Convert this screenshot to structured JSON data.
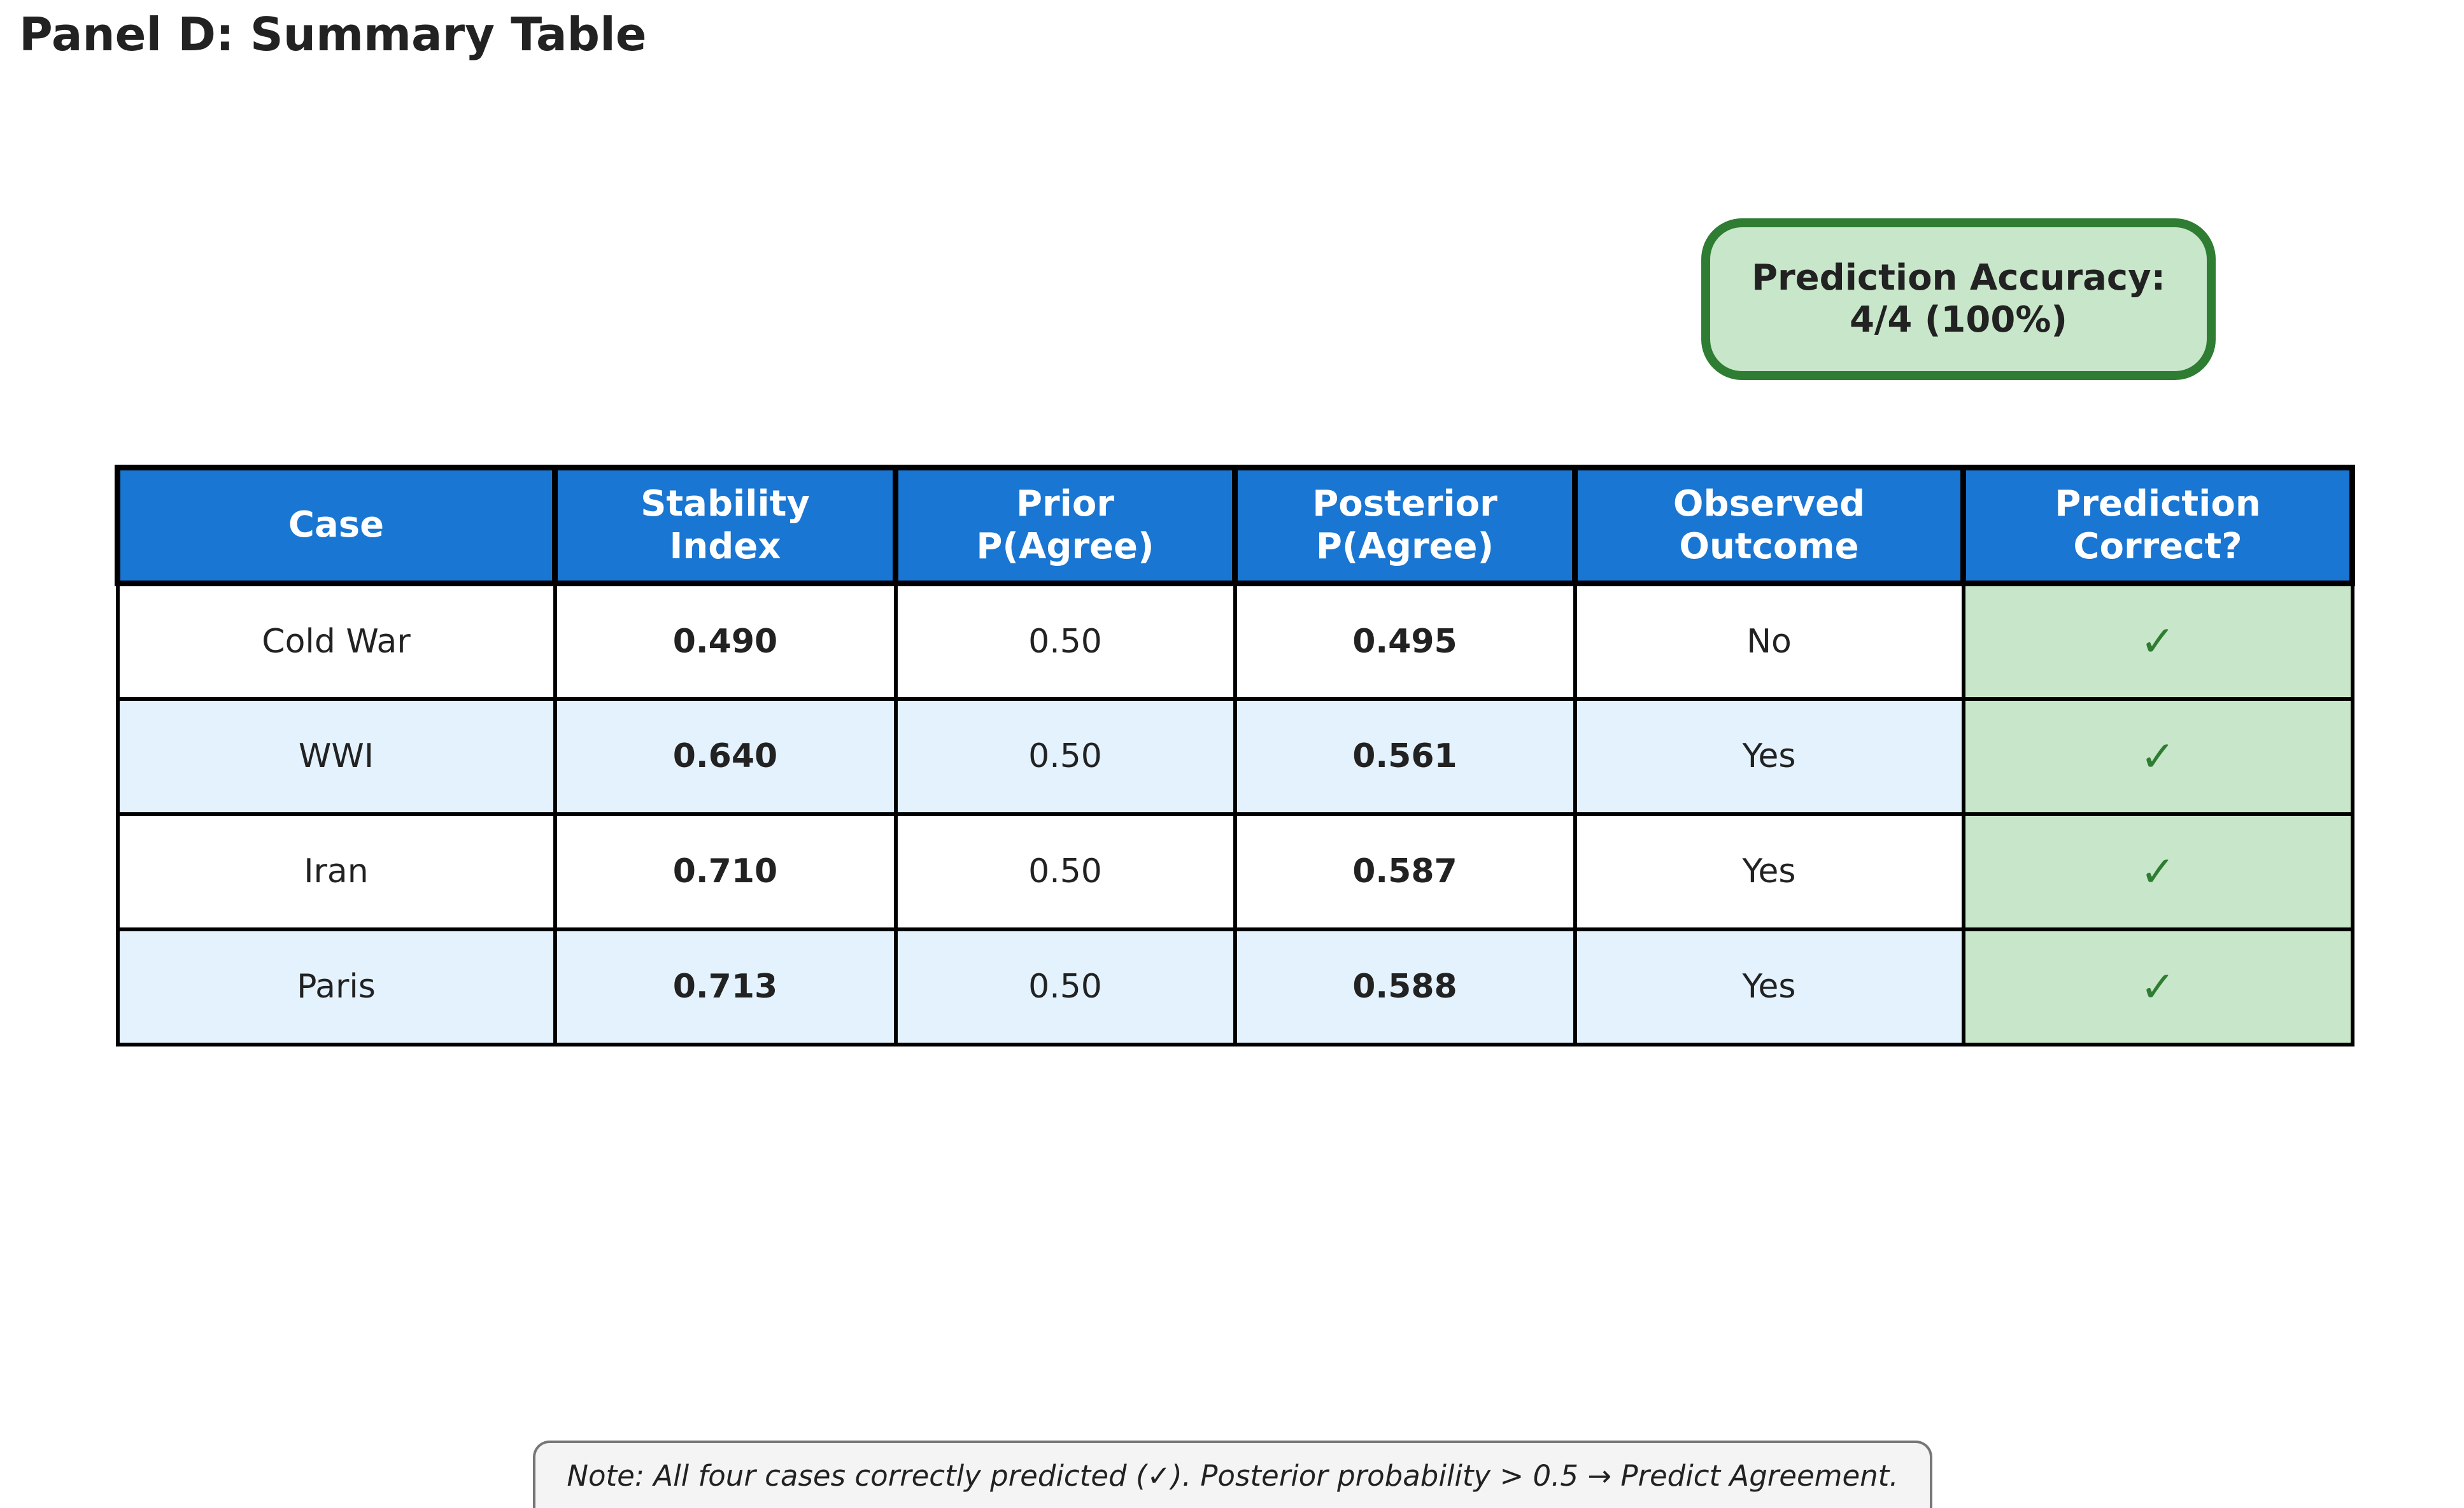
{
  "title": "Panel D: Summary Table",
  "accuracy": {
    "line1": "Prediction Accuracy:",
    "line2": "4/4 (100%)"
  },
  "colors": {
    "header_bg": "#1976d2",
    "row_alt_bg": "#e3f2fd",
    "correct_bg": "#c8e6c9",
    "correct_border": "#2e7d32"
  },
  "chart_data": {
    "type": "table",
    "title": "Panel D: Summary Table",
    "columns": [
      [
        "Case"
      ],
      [
        "Stability",
        "Index"
      ],
      [
        "Prior",
        "P(Agree)"
      ],
      [
        "Posterior",
        "P(Agree)"
      ],
      [
        "Observed",
        "Outcome"
      ],
      [
        "Prediction",
        "Correct?"
      ]
    ],
    "rows": [
      [
        "Cold War",
        "0.490",
        "0.50",
        "0.495",
        "No",
        "✓"
      ],
      [
        "WWI",
        "0.640",
        "0.50",
        "0.561",
        "Yes",
        "✓"
      ],
      [
        "Iran",
        "0.710",
        "0.50",
        "0.587",
        "Yes",
        "✓"
      ],
      [
        "Paris",
        "0.713",
        "0.50",
        "0.588",
        "Yes",
        "✓"
      ]
    ]
  },
  "note": "Note: All four cases correctly predicted (✓). Posterior probability > 0.5 → Predict Agreement."
}
